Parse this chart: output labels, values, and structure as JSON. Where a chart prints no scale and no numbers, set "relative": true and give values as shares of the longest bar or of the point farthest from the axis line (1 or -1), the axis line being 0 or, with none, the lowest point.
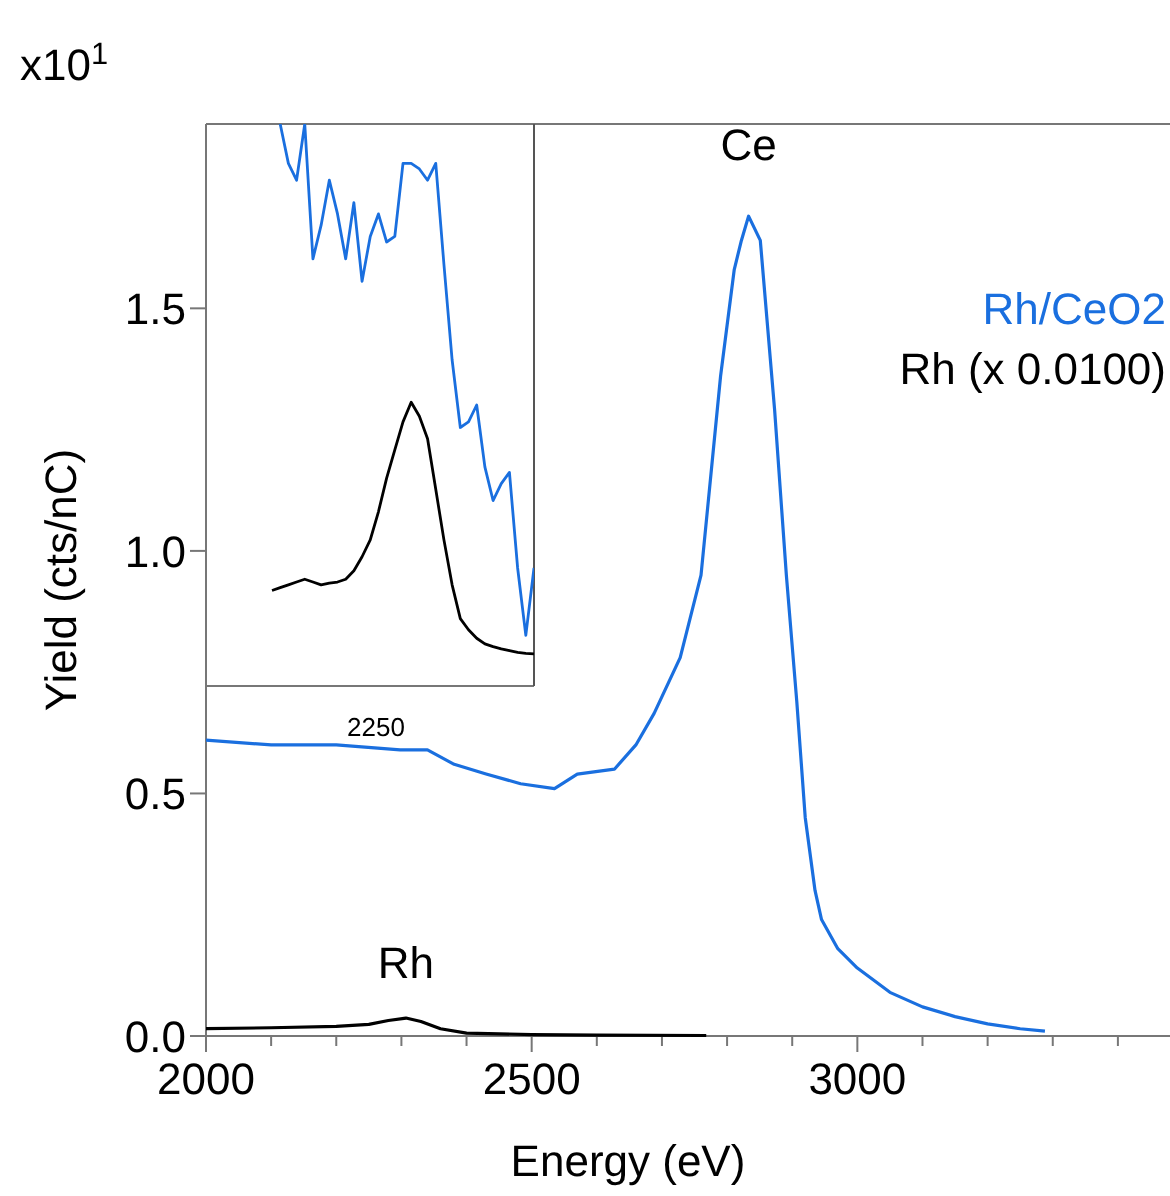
{
  "chart_data": [
    {
      "type": "line",
      "xlabel": "Energy (eV)",
      "ylabel": "Yield (cts/nC)",
      "xlim": [
        2000,
        3480
      ],
      "ylim": [
        0,
        1.88
      ],
      "xticks": [
        2000,
        {
          "value": 2100,
          "label": null
        },
        {
          "value": 2200,
          "label": null
        },
        {
          "value": 2300,
          "label": null
        },
        {
          "value": 2400,
          "label": null
        },
        2500,
        {
          "value": 2600,
          "label": null
        },
        {
          "value": 2700,
          "label": null
        },
        {
          "value": 2800,
          "label": null
        },
        {
          "value": 2900,
          "label": null
        },
        3000,
        {
          "value": 3100,
          "label": null
        },
        {
          "value": 3200,
          "label": null
        },
        {
          "value": 3300,
          "label": null
        },
        {
          "value": 3400,
          "label": null
        }
      ],
      "yticks": [
        {
          "value": 0,
          "label": "0.0"
        },
        0.5,
        {
          "value": 1,
          "label": "1.0"
        },
        1.5
      ],
      "legend": "right",
      "grid": false,
      "annotations": [
        "x10$^{1}$",
        "Ce",
        "Rh"
      ],
      "series": [
        {
          "name": "Rh/CeO2",
          "color": "#1a6fdf",
          "x": [
            2000,
            2100,
            2200,
            2298,
            2340,
            2381,
            2430,
            2483,
            2535,
            2570,
            2627,
            2660,
            2688,
            2728,
            2760,
            2790,
            2811,
            2822,
            2833,
            2851,
            2873,
            2891,
            2907,
            2920,
            2935,
            2945,
            2970,
            3000,
            3050,
            3100,
            3150,
            3200,
            3250,
            3288
          ],
          "values": [
            0.61,
            0.6,
            0.6,
            0.59,
            0.59,
            0.56,
            0.54,
            0.52,
            0.51,
            0.54,
            0.55,
            0.6,
            0.665,
            0.78,
            0.95,
            1.36,
            1.58,
            1.64,
            1.69,
            1.64,
            1.29,
            0.95,
            0.69,
            0.45,
            0.3,
            0.24,
            0.18,
            0.14,
            0.09,
            0.06,
            0.04,
            0.025,
            0.015,
            0.01
          ]
        },
        {
          "name": "Rh (x 0.0100)",
          "color": "#000000",
          "x": [
            2000,
            2100,
            2200,
            2250,
            2280,
            2307,
            2330,
            2360,
            2400,
            2500,
            2600,
            2768
          ],
          "values": [
            0.015,
            0.017,
            0.02,
            0.024,
            0.032,
            0.037,
            0.03,
            0.015,
            0.006,
            0.003,
            0.002,
            0.001
          ]
        }
      ]
    },
    {
      "type": "line",
      "relative": true,
      "annotations": [
        "2250"
      ],
      "categories": [
        null,
        null,
        null,
        null,
        null,
        null,
        null,
        null,
        null,
        null,
        null,
        null,
        null,
        null,
        null,
        null,
        null,
        null,
        null,
        null,
        null,
        null,
        null,
        null,
        null,
        null,
        null,
        null,
        null,
        null,
        null,
        null,
        null
      ],
      "series": [
        {
          "color": "#1a6fdf",
          "values": [
            null,
            1.0,
            0.93,
            0.9,
            1.0,
            0.76,
            0.82,
            0.9,
            0.84,
            0.76,
            0.86,
            0.72,
            0.8,
            0.84,
            0.79,
            0.8,
            0.93,
            0.93,
            0.92,
            0.9,
            0.93,
            0.75,
            0.58,
            0.46,
            0.47,
            0.5,
            0.39,
            0.33,
            0.36,
            0.38,
            0.21,
            0.09,
            0.21
          ]
        },
        {
          "color": "#000000",
          "values": [
            0.17,
            0.175,
            0.18,
            0.185,
            0.19,
            0.185,
            0.18,
            0.183,
            0.185,
            0.19,
            0.205,
            0.23,
            0.26,
            0.31,
            0.37,
            0.42,
            0.47,
            0.505,
            0.48,
            0.44,
            0.35,
            0.26,
            0.18,
            0.12,
            0.1,
            0.085,
            0.075,
            0.07,
            0.066,
            0.063,
            0.06,
            0.058,
            0.057
          ]
        }
      ]
    }
  ]
}
